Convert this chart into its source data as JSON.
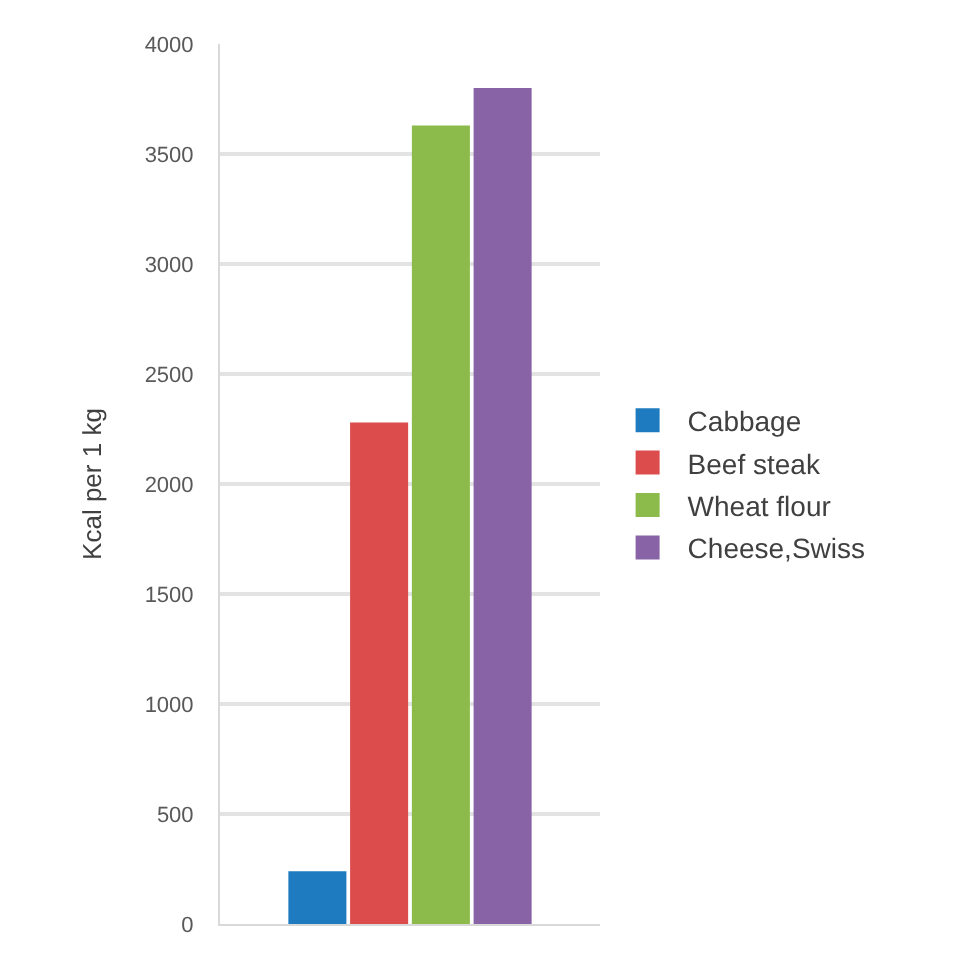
{
  "chart_data": {
    "type": "bar",
    "ylabel": "Kcal per 1 kg",
    "categories": [
      null
    ],
    "series": [
      {
        "name": "Cabbage",
        "color": "#1f7bbf",
        "values": [
          240
        ]
      },
      {
        "name": "Beef steak",
        "color": "#dd4c4c",
        "values": [
          2280
        ]
      },
      {
        "name": "Wheat flour",
        "color": "#8cbb4b",
        "values": [
          3630
        ]
      },
      {
        "name": "Cheese,Swiss",
        "color": "#8864a6",
        "values": [
          3800
        ]
      }
    ],
    "ylim": [
      0,
      4000
    ],
    "yticks": [
      0,
      500,
      1000,
      1500,
      2000,
      2500,
      3000,
      3500,
      4000
    ],
    "grid": "y",
    "legend": "right"
  }
}
